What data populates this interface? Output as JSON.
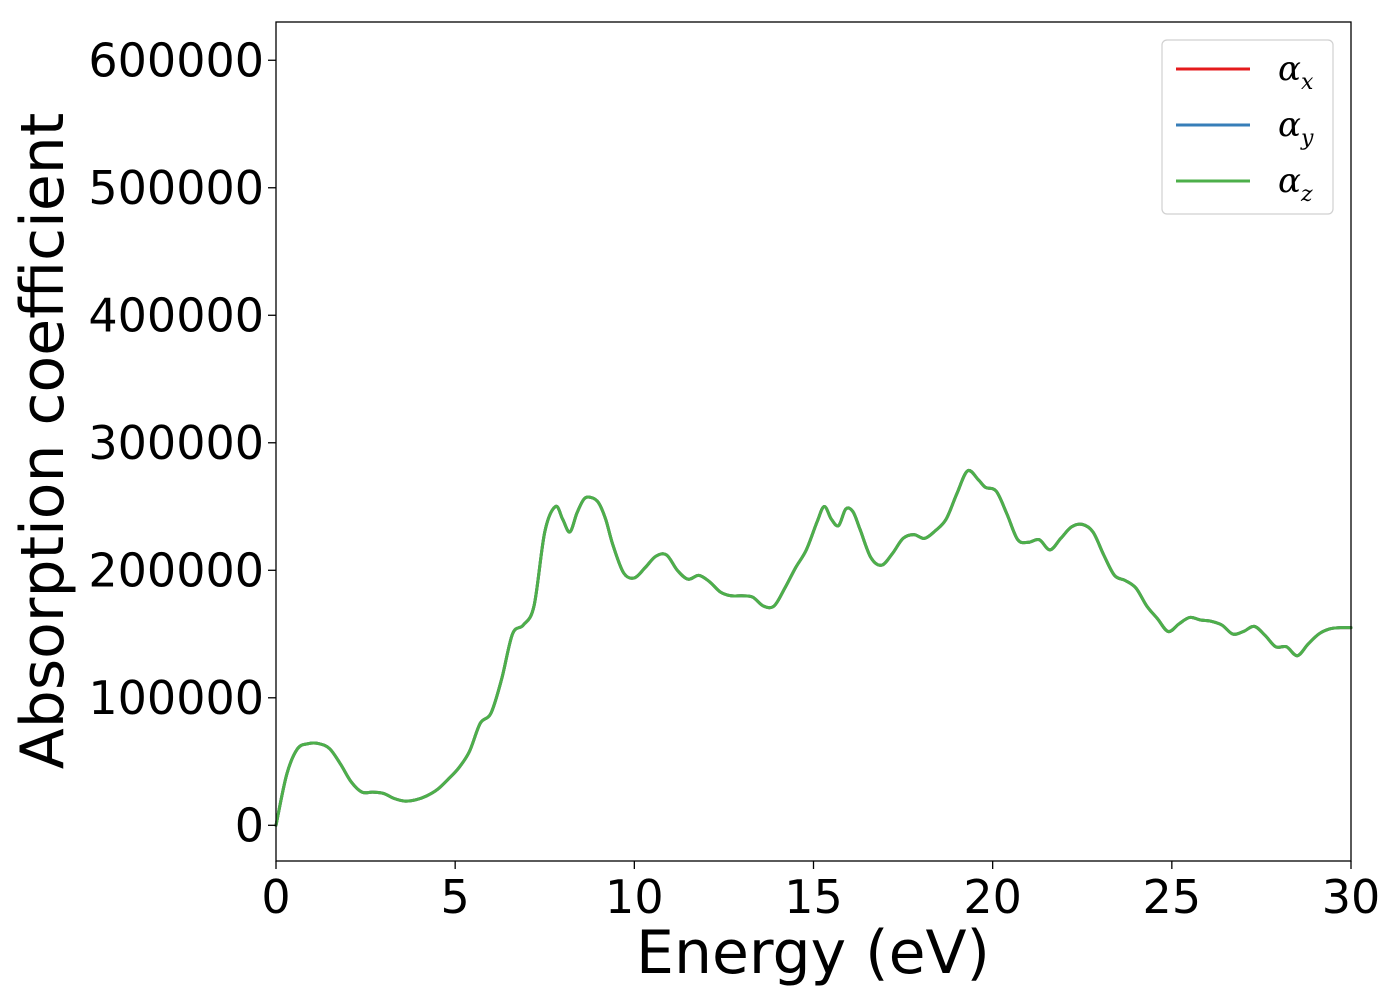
{
  "chart_data": {
    "type": "line",
    "xlabel": "Energy (eV)",
    "ylabel": "Absorption coefficient",
    "xlim": [
      0,
      30
    ],
    "ylim": [
      -28000,
      630000
    ],
    "xticks": [
      0,
      5,
      10,
      15,
      20,
      25,
      30
    ],
    "xtick_labels": [
      "0",
      "5",
      "10",
      "15",
      "20",
      "25",
      "30"
    ],
    "yticks": [
      0,
      100000,
      200000,
      300000,
      400000,
      500000,
      600000
    ],
    "ytick_labels": [
      "0",
      "100000",
      "200000",
      "300000",
      "400000",
      "500000",
      "600000"
    ],
    "grid": false,
    "legend_position": "top-right",
    "x": [
      0,
      0.3,
      0.6,
      0.9,
      1.2,
      1.5,
      1.8,
      2.1,
      2.4,
      2.7,
      3.0,
      3.3,
      3.6,
      3.9,
      4.2,
      4.5,
      4.8,
      5.1,
      5.4,
      5.7,
      6.0,
      6.3,
      6.6,
      6.9,
      7.2,
      7.5,
      7.8,
      8.0,
      8.2,
      8.4,
      8.6,
      8.8,
      9.0,
      9.2,
      9.4,
      9.7,
      10.0,
      10.3,
      10.6,
      10.9,
      11.2,
      11.5,
      11.8,
      12.1,
      12.4,
      12.7,
      13.0,
      13.3,
      13.6,
      13.9,
      14.2,
      14.5,
      14.8,
      15.1,
      15.3,
      15.5,
      15.7,
      15.9,
      16.1,
      16.3,
      16.6,
      16.9,
      17.2,
      17.5,
      17.8,
      18.1,
      18.4,
      18.7,
      19.0,
      19.3,
      19.6,
      19.8,
      20.1,
      20.4,
      20.7,
      21.0,
      21.3,
      21.6,
      21.9,
      22.2,
      22.5,
      22.8,
      23.1,
      23.4,
      23.7,
      24.0,
      24.3,
      24.6,
      24.9,
      25.2,
      25.5,
      25.8,
      26.1,
      26.4,
      26.7,
      27.0,
      27.3,
      27.6,
      27.9,
      28.2,
      28.5,
      28.8,
      29.1,
      29.4,
      29.7,
      30.0
    ],
    "series": [
      {
        "name": "α_x",
        "legend_label": "α",
        "legend_sub": "x",
        "color": "#e41a1c",
        "values": [
          0,
          40000,
          60000,
          64000,
          64000,
          60000,
          48000,
          34000,
          26000,
          26000,
          25000,
          21000,
          19000,
          20000,
          23000,
          28000,
          36000,
          45000,
          58000,
          80000,
          88000,
          115000,
          150000,
          157000,
          172000,
          230000,
          250000,
          240000,
          230000,
          245000,
          256000,
          257000,
          253000,
          240000,
          220000,
          198000,
          194000,
          202000,
          211000,
          212000,
          200000,
          193000,
          196000,
          191000,
          183000,
          180000,
          180000,
          179000,
          172000,
          172000,
          186000,
          202000,
          216000,
          238000,
          250000,
          240000,
          235000,
          248000,
          246000,
          232000,
          210000,
          204000,
          213000,
          225000,
          228000,
          225000,
          231000,
          240000,
          260000,
          278000,
          271000,
          265000,
          262000,
          244000,
          224000,
          222000,
          224000,
          216000,
          225000,
          234000,
          236000,
          230000,
          212000,
          196000,
          192000,
          186000,
          172000,
          162000,
          152000,
          158000,
          163000,
          161000,
          160000,
          157000,
          150000,
          152000,
          156000,
          149000,
          140000,
          140000,
          133000,
          142000,
          150000,
          154000,
          155000,
          155000
        ]
      },
      {
        "name": "α_y",
        "legend_label": "α",
        "legend_sub": "y",
        "color": "#377eb8",
        "values": [
          0,
          40000,
          60000,
          64000,
          64000,
          60000,
          48000,
          34000,
          26000,
          26000,
          25000,
          21000,
          19000,
          20000,
          23000,
          28000,
          36000,
          45000,
          58000,
          80000,
          88000,
          115000,
          150000,
          157000,
          172000,
          230000,
          250000,
          240000,
          230000,
          245000,
          256000,
          257000,
          253000,
          240000,
          220000,
          198000,
          194000,
          202000,
          211000,
          212000,
          200000,
          193000,
          196000,
          191000,
          183000,
          180000,
          180000,
          179000,
          172000,
          172000,
          186000,
          202000,
          216000,
          238000,
          250000,
          240000,
          235000,
          248000,
          246000,
          232000,
          210000,
          204000,
          213000,
          225000,
          228000,
          225000,
          231000,
          240000,
          260000,
          278000,
          271000,
          265000,
          262000,
          244000,
          224000,
          222000,
          224000,
          216000,
          225000,
          234000,
          236000,
          230000,
          212000,
          196000,
          192000,
          186000,
          172000,
          162000,
          152000,
          158000,
          163000,
          161000,
          160000,
          157000,
          150000,
          152000,
          156000,
          149000,
          140000,
          140000,
          133000,
          142000,
          150000,
          154000,
          155000,
          155000
        ]
      },
      {
        "name": "α_z",
        "legend_label": "α",
        "legend_sub": "z",
        "color": "#4daf4a",
        "values": [
          0,
          40000,
          60000,
          64000,
          64000,
          60000,
          48000,
          34000,
          26000,
          26000,
          25000,
          21000,
          19000,
          20000,
          23000,
          28000,
          36000,
          45000,
          58000,
          80000,
          88000,
          115000,
          150000,
          157000,
          172000,
          230000,
          250000,
          240000,
          230000,
          245000,
          256000,
          257000,
          253000,
          240000,
          220000,
          198000,
          194000,
          202000,
          211000,
          212000,
          200000,
          193000,
          196000,
          191000,
          183000,
          180000,
          180000,
          179000,
          172000,
          172000,
          186000,
          202000,
          216000,
          238000,
          250000,
          240000,
          235000,
          248000,
          246000,
          232000,
          210000,
          204000,
          213000,
          225000,
          228000,
          225000,
          231000,
          240000,
          260000,
          278000,
          271000,
          265000,
          262000,
          244000,
          224000,
          222000,
          224000,
          216000,
          225000,
          234000,
          236000,
          230000,
          212000,
          196000,
          192000,
          186000,
          172000,
          162000,
          152000,
          158000,
          163000,
          161000,
          160000,
          157000,
          150000,
          152000,
          156000,
          149000,
          140000,
          140000,
          133000,
          142000,
          150000,
          154000,
          155000,
          155000
        ]
      }
    ]
  }
}
